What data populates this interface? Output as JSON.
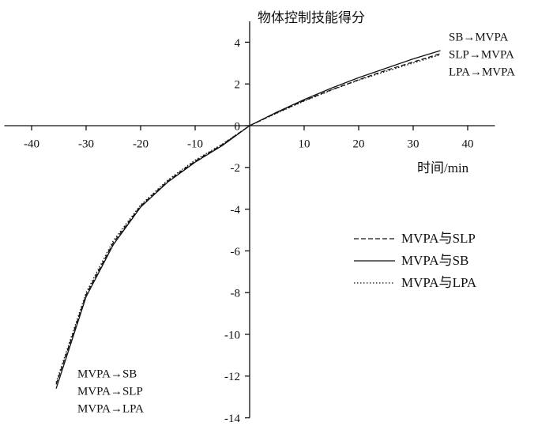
{
  "chart_data": {
    "type": "line",
    "y_label": "物体控制技能得分",
    "x_label": "时间/min",
    "x": [
      -35.5,
      -30,
      -25,
      -20,
      -15,
      -10,
      -5,
      0,
      5,
      10,
      15,
      20,
      25,
      30,
      35
    ],
    "series": [
      {
        "name": "MVPA与SLP",
        "color": "#111111",
        "linestyle": "dashed",
        "values": [
          -12.4,
          -8.1,
          -5.6,
          -3.85,
          -2.65,
          -1.7,
          -0.9,
          0,
          0.62,
          1.2,
          1.72,
          2.2,
          2.65,
          3.05,
          3.45
        ]
      },
      {
        "name": "MVPA与SB",
        "color": "#111111",
        "linestyle": "solid",
        "values": [
          -12.6,
          -8.2,
          -5.7,
          -3.9,
          -2.7,
          -1.75,
          -0.95,
          0,
          0.65,
          1.25,
          1.8,
          2.3,
          2.75,
          3.2,
          3.6
        ]
      },
      {
        "name": "MVPA与LPA",
        "color": "#111111",
        "linestyle": "dotted",
        "values": [
          -12.3,
          -8.0,
          -5.5,
          -3.8,
          -2.6,
          -1.65,
          -0.88,
          0,
          0.6,
          1.18,
          1.7,
          2.18,
          2.6,
          3.0,
          3.4
        ]
      }
    ],
    "xlim": [
      -45,
      45
    ],
    "ylim": [
      -14,
      5
    ],
    "xticks": [
      -40,
      -30,
      -20,
      -10,
      10,
      20,
      30,
      40
    ],
    "yticks": [
      -14,
      -12,
      -10,
      -8,
      -6,
      -4,
      -2,
      0,
      2,
      4
    ],
    "annotations_top_right": [
      "SB→MVPA",
      "SLP→MVPA",
      "LPA→MVPA"
    ],
    "annotations_bottom_left": [
      "MVPA→SB",
      "MVPA→SLP",
      "MVPA→LPA"
    ],
    "legend": "lower right"
  }
}
